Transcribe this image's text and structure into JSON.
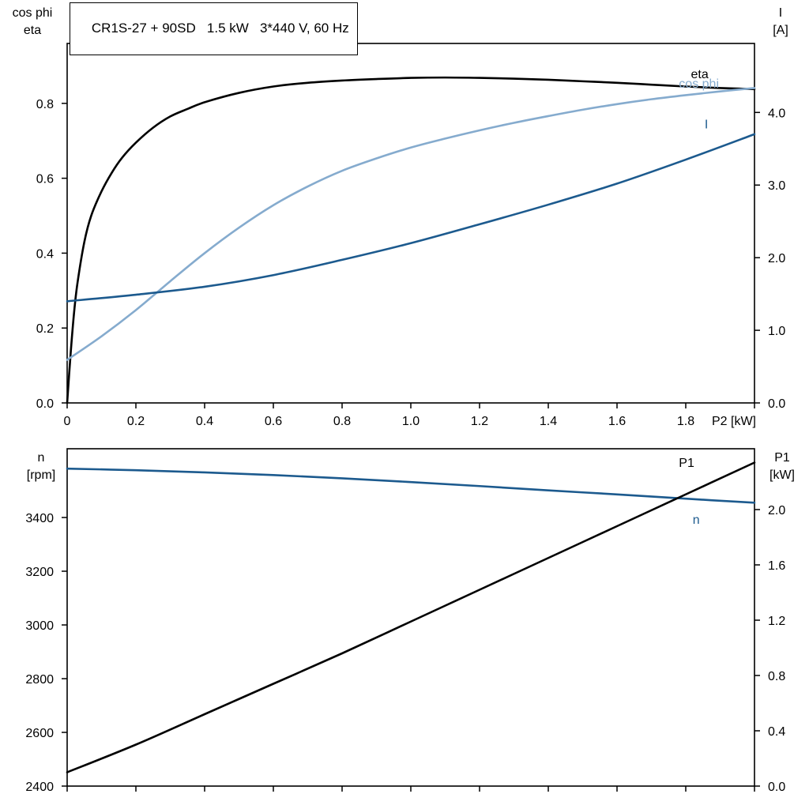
{
  "title": "CR1S-27 + 90SD   1.5 kW   3*440 V, 60 Hz",
  "colors": {
    "black": "#000000",
    "dark_blue": "#1c5a8e",
    "light_blue": "#85abce"
  },
  "chart_data": [
    {
      "id": "top-chart",
      "type": "line",
      "title": "CR1S-27 + 90SD   1.5 kW   3*440 V, 60 Hz",
      "xlabel": "P2 [kW]",
      "ylabel_left": [
        "cos phi",
        "eta"
      ],
      "ylabel_right": [
        "I",
        "[A]"
      ],
      "xlim": [
        0,
        2
      ],
      "xticks": [
        0,
        0.2,
        0.4,
        0.6,
        0.8,
        1,
        1.2,
        1.4,
        1.6,
        1.8,
        2
      ],
      "xtick_labels": [
        "0",
        "0.2",
        "0.4",
        "0.6",
        "0.8",
        "1.0",
        "1.2",
        "1.4",
        "1.6",
        "1.8",
        null
      ],
      "ylim_left": [
        0,
        0.96
      ],
      "yticks_left": [
        0,
        0.2,
        0.4,
        0.6,
        0.8
      ],
      "ytick_labels_left": [
        "0.0",
        "0.2",
        "0.4",
        "0.6",
        "0.8"
      ],
      "ylim_right": [
        0,
        4.95
      ],
      "yticks_right": [
        0,
        1,
        2,
        3,
        4
      ],
      "ytick_labels_right": [
        "0.0",
        "1.0",
        "2.0",
        "3.0",
        "4.0"
      ],
      "grid": false,
      "legend_position": "inline-labels",
      "series": [
        {
          "name": "eta",
          "axis": "left",
          "color": "black",
          "label": {
            "text": "eta",
            "x": 1.815,
            "y": 0.867,
            "anchor": "start"
          },
          "x": [
            0,
            0.01,
            0.02,
            0.03,
            0.05,
            0.07,
            0.1,
            0.13,
            0.16,
            0.2,
            0.25,
            0.3,
            0.35,
            0.4,
            0.5,
            0.6,
            0.7,
            0.8,
            0.9,
            1.0,
            1.1,
            1.2,
            1.3,
            1.4,
            1.5,
            1.6,
            1.7,
            1.8,
            1.9,
            2.0
          ],
          "y": [
            0,
            0.13,
            0.24,
            0.32,
            0.43,
            0.5,
            0.565,
            0.615,
            0.655,
            0.695,
            0.735,
            0.765,
            0.785,
            0.803,
            0.828,
            0.845,
            0.855,
            0.861,
            0.865,
            0.868,
            0.869,
            0.868,
            0.866,
            0.863,
            0.859,
            0.855,
            0.85,
            0.845,
            0.841,
            0.838
          ]
        },
        {
          "name": "cos phi",
          "axis": "left",
          "color": "light_blue",
          "label": {
            "text": "cos phi",
            "x": 1.78,
            "y": 0.842,
            "anchor": "start"
          },
          "x": [
            0,
            0.1,
            0.2,
            0.3,
            0.4,
            0.5,
            0.6,
            0.7,
            0.8,
            0.9,
            1.0,
            1.1,
            1.2,
            1.3,
            1.4,
            1.5,
            1.6,
            1.7,
            1.8,
            1.9,
            2.0
          ],
          "y": [
            0.115,
            0.178,
            0.248,
            0.325,
            0.4,
            0.468,
            0.528,
            0.578,
            0.62,
            0.653,
            0.682,
            0.706,
            0.728,
            0.748,
            0.766,
            0.783,
            0.798,
            0.811,
            0.822,
            0.832,
            0.841
          ]
        },
        {
          "name": "I",
          "axis": "right",
          "color": "dark_blue",
          "label": {
            "text": "I",
            "x": 1.855,
            "y": 3.78,
            "anchor": "start"
          },
          "x": [
            0,
            0.2,
            0.4,
            0.6,
            0.8,
            1.0,
            1.2,
            1.4,
            1.6,
            1.8,
            2.0
          ],
          "y": [
            1.4,
            1.49,
            1.6,
            1.76,
            1.97,
            2.2,
            2.46,
            2.73,
            3.02,
            3.35,
            3.7
          ]
        }
      ]
    },
    {
      "id": "bottom-chart",
      "type": "line",
      "title": "",
      "xlabel": "",
      "ylabel_left": [
        "n",
        "[rpm]"
      ],
      "ylabel_right": [
        "P1",
        "[kW]"
      ],
      "xlim": [
        0,
        2
      ],
      "xticks": [
        0,
        0.2,
        0.4,
        0.6,
        0.8,
        1,
        1.2,
        1.4,
        1.6,
        1.8,
        2
      ],
      "ylim_left": [
        2400,
        3656
      ],
      "yticks_left": [
        2400,
        2600,
        2800,
        3000,
        3200,
        3400
      ],
      "ytick_labels_left": [
        "2400",
        "2600",
        "2800",
        "3000",
        "3200",
        "3400"
      ],
      "ylim_right": [
        0,
        2.44
      ],
      "yticks_right": [
        0,
        0.4,
        0.8,
        1.2,
        1.6,
        2.0
      ],
      "ytick_labels_right": [
        "0.0",
        "0.4",
        "0.8",
        "1.2",
        "1.6",
        "2.0"
      ],
      "grid": false,
      "legend_position": "inline-labels",
      "series": [
        {
          "name": "n",
          "axis": "left",
          "color": "dark_blue",
          "label": {
            "text": "n",
            "x": 1.82,
            "y": 3376,
            "anchor": "start"
          },
          "x": [
            0,
            0.2,
            0.4,
            0.6,
            0.8,
            1.0,
            1.2,
            1.4,
            1.6,
            1.8,
            2.0
          ],
          "y": [
            3582,
            3576,
            3568,
            3558,
            3546,
            3532,
            3517,
            3501,
            3486,
            3470,
            3455
          ]
        },
        {
          "name": "P1",
          "axis": "right",
          "color": "black",
          "label": {
            "text": "P1",
            "x": 1.78,
            "y": 2.31,
            "anchor": "start"
          },
          "x": [
            0,
            0.2,
            0.4,
            0.6,
            0.8,
            1.0,
            1.2,
            1.4,
            1.6,
            1.8,
            2.0
          ],
          "y": [
            0.1,
            0.3,
            0.52,
            0.74,
            0.96,
            1.19,
            1.42,
            1.65,
            1.88,
            2.11,
            2.34
          ]
        }
      ]
    }
  ]
}
